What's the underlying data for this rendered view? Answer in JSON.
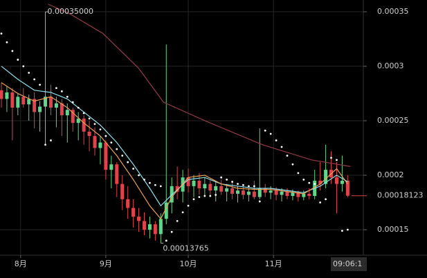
{
  "chart_data": {
    "type": "candlestick",
    "up_color": "#5fd68b",
    "down_color": "#e0434c",
    "x": [
      -7,
      -5,
      -3,
      -1,
      1,
      3,
      5,
      7,
      9,
      11,
      13,
      15,
      17,
      19,
      21,
      23,
      25,
      27,
      29,
      31,
      33,
      35,
      37,
      39,
      41,
      43,
      45,
      47,
      49,
      51,
      53,
      55,
      57,
      59,
      61,
      63,
      65,
      67,
      69,
      71,
      73,
      75,
      77,
      79,
      81,
      83,
      85,
      87,
      89,
      91,
      93,
      95,
      97,
      99,
      101,
      103,
      105,
      107,
      109,
      111,
      113,
      115,
      117,
      119
    ],
    "open": [
      0.000278,
      0.00027,
      0.000276,
      0.000262,
      0.000272,
      0.000265,
      0.00027,
      0.000258,
      0.000263,
      0.000272,
      0.000262,
      0.000266,
      0.000255,
      0.00026,
      0.000248,
      0.000252,
      0.00024,
      0.000236,
      0.000225,
      0.00023,
      0.000205,
      0.00021,
      0.000192,
      0.000178,
      0.00017,
      0.000162,
      0.000158,
      0.00015,
      0.000155,
      0.000146,
      0.00016,
      0.000175,
      0.00019,
      0.000185,
      0.000198,
      0.00019,
      0.000195,
      0.000188,
      0.000192,
      0.000186,
      0.00019,
      0.000185,
      0.000188,
      0.000183,
      0.000186,
      0.000182,
      0.000185,
      0.00018,
      0.000188,
      0.000184,
      0.000186,
      0.000182,
      0.000185,
      0.000181,
      0.000184,
      0.00018,
      0.000183,
      0.000181,
      0.000195,
      0.000192,
      0.000205,
      0.000198,
      0.000192,
      0.000195
    ],
    "high": [
      0.000285,
      0.000282,
      0.00028,
      0.000275,
      0.00028,
      0.000274,
      0.000276,
      0.000268,
      0.00035,
      0.000283,
      0.000272,
      0.00027,
      0.000266,
      0.000262,
      0.000258,
      0.000255,
      0.00025,
      0.000244,
      0.000236,
      0.000232,
      0.000218,
      0.000212,
      0.0002,
      0.00019,
      0.000178,
      0.00017,
      0.000166,
      0.000162,
      0.000158,
      0.000165,
      0.00032,
      0.000198,
      0.000208,
      0.000205,
      0.000206,
      0.0002,
      0.000202,
      0.000198,
      0.000196,
      0.000195,
      0.000196,
      0.000192,
      0.000193,
      0.00019,
      0.00019,
      0.000188,
      0.000195,
      0.000243,
      0.000192,
      0.00019,
      0.000189,
      0.000188,
      0.000188,
      0.000187,
      0.000186,
      0.000186,
      0.000188,
      0.000205,
      0.000212,
      0.000228,
      0.000222,
      0.000212,
      0.000218,
      0.0002
    ],
    "low": [
      0.000262,
      0.000258,
      0.000232,
      0.000255,
      0.000262,
      0.00025,
      0.000243,
      0.00024,
      0.000228,
      0.000255,
      0.000244,
      0.000236,
      0.00023,
      0.00024,
      0.000232,
      0.000228,
      0.000222,
      0.000218,
      0.00021,
      0.000196,
      0.000188,
      0.00018,
      0.000168,
      0.00016,
      0.000152,
      0.000148,
      0.000145,
      0.000142,
      0.00014,
      0.00013765,
      0.000155,
      0.000165,
      0.000178,
      0.000175,
      0.000184,
      0.00018,
      0.000182,
      0.00018,
      0.000182,
      0.000176,
      0.000182,
      0.000176,
      0.000178,
      0.000175,
      0.000178,
      0.000176,
      0.000178,
      0.000178,
      0.00018,
      0.000178,
      0.000177,
      0.000176,
      0.000178,
      0.000177,
      0.000176,
      0.000177,
      0.000178,
      0.000178,
      0.000186,
      0.000188,
      0.000192,
      0.000165,
      0.000185,
      0.00018
    ],
    "close": [
      0.00027,
      0.000276,
      0.000262,
      0.000272,
      0.000265,
      0.00027,
      0.000258,
      0.000263,
      0.000272,
      0.000262,
      0.000266,
      0.000255,
      0.00026,
      0.000248,
      0.000252,
      0.00024,
      0.000236,
      0.000225,
      0.00023,
      0.000205,
      0.00021,
      0.000192,
      0.000178,
      0.00017,
      0.000162,
      0.000158,
      0.00015,
      0.000155,
      0.000146,
      0.00016,
      0.000175,
      0.00019,
      0.000185,
      0.000198,
      0.00019,
      0.000195,
      0.000188,
      0.000192,
      0.000186,
      0.00019,
      0.000185,
      0.000188,
      0.000183,
      0.000186,
      0.000182,
      0.000185,
      0.00018,
      0.000188,
      0.000184,
      0.000186,
      0.000182,
      0.000185,
      0.000181,
      0.000184,
      0.00018,
      0.000183,
      0.000181,
      0.000195,
      0.000192,
      0.000205,
      0.000198,
      0.000192,
      0.000195,
      0.00018123
    ],
    "lines": [
      {
        "color": "#8fe3f0",
        "x": [
          -7,
          -1,
          5,
          11,
          17,
          23,
          29,
          35,
          41,
          47,
          51,
          55,
          61,
          67,
          73,
          79,
          85,
          91,
          97,
          103,
          109,
          115,
          119
        ],
        "values": [
          0.0003,
          0.000288,
          0.000278,
          0.000276,
          0.00027,
          0.000258,
          0.000246,
          0.00023,
          0.00021,
          0.000188,
          0.000172,
          0.000182,
          0.000196,
          0.000198,
          0.000192,
          0.00019,
          0.000188,
          0.000188,
          0.000186,
          0.000184,
          0.00019,
          0.0002,
          0.000194
        ]
      },
      {
        "color": "#f0a050",
        "x": [
          -7,
          -1,
          5,
          11,
          17,
          23,
          29,
          35,
          41,
          47,
          51,
          55,
          61,
          67,
          73,
          79,
          85,
          91,
          97,
          103,
          109,
          115,
          119
        ],
        "values": [
          0.000285,
          0.000275,
          0.000268,
          0.000272,
          0.000262,
          0.000248,
          0.000236,
          0.000218,
          0.000196,
          0.000172,
          0.00016,
          0.00018,
          0.000198,
          0.0002,
          0.000192,
          0.000188,
          0.000187,
          0.000187,
          0.000185,
          0.000183,
          0.000192,
          0.000206,
          0.000192
        ]
      },
      {
        "color": "#9a3a4a",
        "x": [
          10,
          18,
          30,
          43,
          52,
          68,
          88,
          106,
          120
        ],
        "values": [
          0.000357,
          0.000348,
          0.00033,
          0.000298,
          0.000267,
          0.000249,
          0.000228,
          0.000214,
          0.000208
        ]
      }
    ],
    "sar": {
      "color": "#ffffff",
      "x": [
        -7,
        -5,
        -3,
        -1,
        1,
        3,
        5,
        7,
        9,
        11,
        13,
        15,
        17,
        19,
        21,
        23,
        25,
        27,
        29,
        31,
        33,
        35,
        37,
        39,
        41,
        43,
        45,
        47,
        49,
        51,
        53,
        55,
        57,
        59,
        61,
        63,
        65,
        67,
        69,
        71,
        73,
        75,
        77,
        79,
        81,
        83,
        85,
        87,
        89,
        91,
        93,
        95,
        97,
        99,
        101,
        103,
        105,
        107,
        109,
        111,
        113,
        115,
        117,
        119
      ],
      "values": [
        0.00033,
        0.000322,
        0.000314,
        0.000306,
        0.0003,
        0.000294,
        0.000288,
        0.000283,
        0.000228,
        0.000232,
        0.00028,
        0.000277,
        0.000272,
        0.000267,
        0.000262,
        0.000257,
        0.000252,
        0.000247,
        0.000242,
        0.000236,
        0.00023,
        0.000224,
        0.000218,
        0.000212,
        0.000206,
        0.0002,
        0.000196,
        0.000193,
        0.000191,
        0.00019,
        0.00014,
        0.000148,
        0.000158,
        0.000166,
        0.000172,
        0.000178,
        0.00018,
        0.000181,
        0.000181,
        0.000182,
        0.000198,
        0.000196,
        0.000194,
        0.000192,
        0.000191,
        0.00019,
        0.00019,
        0.000176,
        0.000241,
        0.000238,
        0.000232,
        0.000226,
        0.000218,
        0.00021,
        0.000202,
        0.000196,
        0.000193,
        0.000192,
        0.000175,
        0.000178,
        0.000216,
        0.000214,
        0.000149,
        0.00015
      ]
    },
    "annotations": [
      {
        "text": "0.00035000",
        "x": 9,
        "value": 0.00035
      },
      {
        "text": "0.00013765",
        "x": 51,
        "value": 0.00013765
      }
    ],
    "last_price": 0.00018123,
    "crosshair_time": "09:06:1",
    "xlim": [
      -7.5,
      124.7
    ],
    "xticks": [
      {
        "value": 0,
        "label": "8月"
      },
      {
        "value": 31,
        "label": "9月"
      },
      {
        "value": 61,
        "label": "10月"
      },
      {
        "value": 92,
        "label": "11月"
      }
    ],
    "ylim": [
      0.0001266,
      0.0003608
    ],
    "yticks": [
      0.00015,
      0.0002,
      0.00025,
      0.0003,
      0.00035
    ],
    "grid": true
  }
}
